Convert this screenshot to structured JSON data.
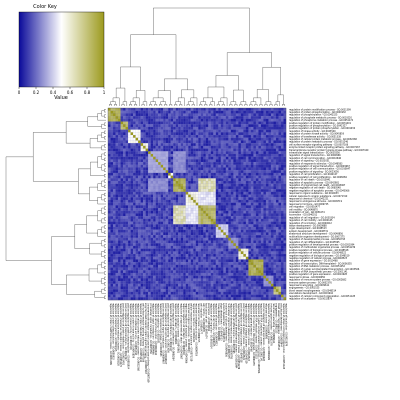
{
  "chart_data": {
    "type": "heatmap",
    "color_key": {
      "title": "Color Key",
      "xlabel": "Value",
      "ticks": [
        "0",
        "0.2",
        "0.4",
        "0.6",
        "0.8",
        "1"
      ],
      "range": [
        0,
        1
      ],
      "colors": {
        "low": "#0a0a9a",
        "mid": "#ffffff",
        "high": "#9c9a1e"
      }
    },
    "dendrograms": {
      "row": true,
      "column": true
    },
    "diagonal_value": 1,
    "row_labels": [
      "regulation of protein modification process - GO:0031399",
      "regulation of protein phosphorylation - GO:0001932",
      "regulation of phosphorylation - GO:0042325",
      "regulation of phosphate metabolic process - GO:0019220",
      "regulation of phosphorus metabolic process - GO:0051174",
      "positive regulation of protein modification - GO:0031401",
      "positive regulation of phosphorylation - GO:0042327",
      "positive regulation of protein phosphorylation - GO:0001934",
      "regulation of kinase activity - GO:0043549",
      "regulation of protein kinase activity - GO:0045859",
      "regulation of transferase activity - GO:0051338",
      "regulation of cellular protein metabolic process - GO:0032268",
      "regulation of protein metabolic process - GO:0051246",
      "cell surface receptor signaling pathway - GO:0007166",
      "enzyme linked receptor protein signaling pathway - GO:0007167",
      "transmembrane receptor protein tyrosine kinase pathway - GO:0007169",
      "intracellular signal transduction - GO:0035556",
      "regulation of signal transduction - GO:0009966",
      "regulation of cell communication - GO:0010646",
      "regulation of signaling - GO:0023051",
      "regulation of response to stimulus - GO:0048583",
      "positive regulation of signal transduction - GO:0009967",
      "positive regulation of cell communication - GO:0010647",
      "positive regulation of signaling - GO:0023056",
      "regulation of cell proliferation - GO:0042127",
      "positive regulation of cell proliferation - GO:0008284",
      "regulation of cell death - GO:0010941",
      "regulation of apoptotic process - GO:0042981",
      "regulation of programmed cell death - GO:0043067",
      "negative regulation of cell death - GO:0060548",
      "negative regulation of apoptotic process - GO:0043066",
      "response to organic substance - GO:0010033",
      "cellular response to organic substance - GO:0071310",
      "response to chemical - GO:0042221",
      "response to endogenous stimulus - GO:0009719",
      "response to hormone - GO:0009725",
      "cell migration - GO:0016477",
      "cell motility - GO:0048870",
      "localization of cell - GO:0051674",
      "locomotion - GO:0040011",
      "regulation of cell migration - GO:0030334",
      "regulation of cell motility - GO:2000145",
      "regulation of locomotion - GO:0040012",
      "tissue development - GO:0009888",
      "organ development - GO:0048513",
      "system development - GO:0048731",
      "anatomical structure development - GO:0048856",
      "multicellular organism development - GO:0007275",
      "regulation of developmental process - GO:0050793",
      "regulation of cell differentiation - GO:0045595",
      "positive regulation of developmental process - GO:0051094",
      "regulation of multicellular organismal process - GO:0051239",
      "positive regulation of biological process - GO:0048518",
      "positive regulation of cellular process - GO:0048522",
      "negative regulation of biological process - GO:0048519",
      "negative regulation of cellular process - GO:0048523",
      "regulation of gene expression - GO:0010468",
      "regulation of transcription, DNA-templated - GO:0006355",
      "regulation of RNA metabolic process - GO:0051252",
      "regulation of nucleic acid-templated transcription - GO:1903506",
      "regulation of RNA biosynthetic process - GO:2001141",
      "positive regulation of gene expression - GO:0010628",
      "response to stress - GO:0006950",
      "regulation of immune system process - GO:0002682",
      "immune system process - GO:0002376",
      "response to wounding - GO:0009611",
      "angiogenesis - GO:0001525",
      "blood vessel morphogenesis - GO:0048514",
      "vasculature development - GO:0001944",
      "regulation of cellular component organization - GO:0051128",
      "regulation of localization - GO:0032879"
    ],
    "blocks": [
      {
        "start": 0,
        "end": 4,
        "value": 0.95
      },
      {
        "start": 5,
        "end": 7,
        "value": 0.9
      },
      {
        "start": 8,
        "end": 12,
        "value": 0.55
      },
      {
        "start": 13,
        "end": 15,
        "value": 0.6
      },
      {
        "start": 16,
        "end": 23,
        "value": 0.35
      },
      {
        "start": 24,
        "end": 25,
        "value": 0.55
      },
      {
        "start": 26,
        "end": 30,
        "value": 0.95
      },
      {
        "start": 31,
        "end": 35,
        "value": 0.62
      },
      {
        "start": 36,
        "end": 42,
        "value": 0.92
      },
      {
        "start": 43,
        "end": 47,
        "value": 0.45
      },
      {
        "start": 48,
        "end": 51,
        "value": 0.3
      },
      {
        "start": 52,
        "end": 55,
        "value": 0.6
      },
      {
        "start": 56,
        "end": 61,
        "value": 0.95
      },
      {
        "start": 62,
        "end": 65,
        "value": 0.3
      },
      {
        "start": 66,
        "end": 68,
        "value": 0.85
      },
      {
        "start": 69,
        "end": 70,
        "value": 0.3
      }
    ],
    "cross_blocks": [
      {
        "rows": [
          26,
          30
        ],
        "cols": [
          36,
          42
        ],
        "value": 0.75
      },
      {
        "rows": [
          31,
          35
        ],
        "cols": [
          36,
          42
        ],
        "value": 0.5
      },
      {
        "rows": [
          16,
          23
        ],
        "cols": [
          26,
          30
        ],
        "value": 0.3
      }
    ]
  }
}
